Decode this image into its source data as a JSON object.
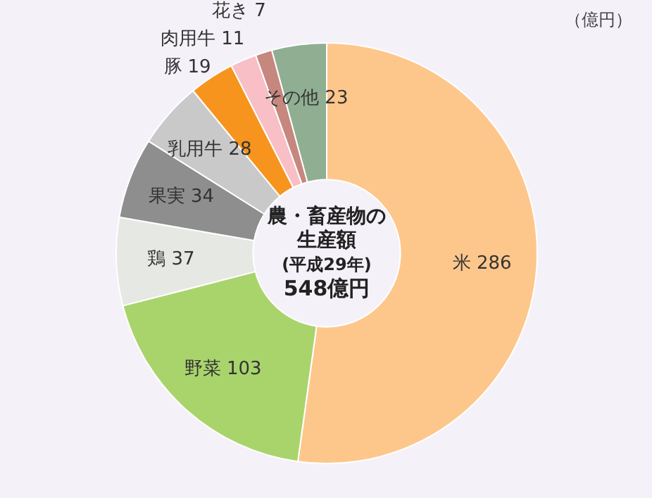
{
  "chart_data": {
    "type": "donut",
    "title": "農・畜産物の生産額",
    "subtitle": "(平成29年)",
    "annotations": [
      "548億円",
      "（億円）"
    ],
    "categories": [
      "米",
      "野菜",
      "鶏",
      "果実",
      "乳用牛",
      "豚",
      "肉用牛",
      "花き",
      "その他"
    ],
    "values": [
      286,
      103,
      37,
      34,
      28,
      19,
      11,
      7,
      23
    ],
    "colors": [
      "#fdc78c",
      "#a9d46c",
      "#e6e8e4",
      "#8e8e8e",
      "#c9c9c9",
      "#f7941d",
      "#f8bfc6",
      "#c6877e",
      "#8fae92"
    ],
    "data_labels": true,
    "legend": false
  }
}
